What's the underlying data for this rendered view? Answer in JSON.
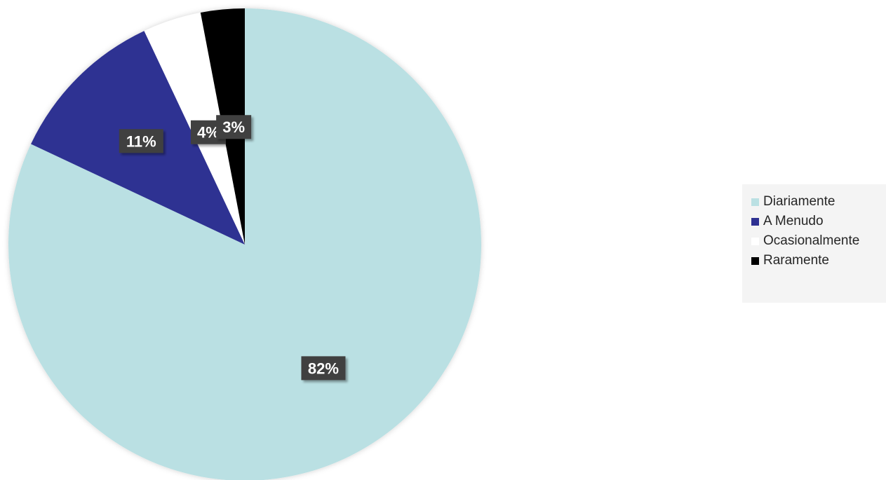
{
  "chart_data": {
    "type": "pie",
    "title": "",
    "slices": [
      {
        "label": "Diariamente",
        "value": 82,
        "display": "82%",
        "color": "#bae0e3"
      },
      {
        "label": "A Menudo",
        "value": 11,
        "display": "11%",
        "color": "#2e3192"
      },
      {
        "label": "Ocasionalmente",
        "value": 4,
        "display": "4%",
        "color": "#ffffff"
      },
      {
        "label": "Raramente",
        "value": 3,
        "display": "3%",
        "color": "#000000"
      }
    ],
    "legend_position": "right"
  },
  "legend": {
    "items": [
      {
        "label": "Diariamente",
        "color": "#bae0e3"
      },
      {
        "label": "A Menudo",
        "color": "#2e3192"
      },
      {
        "label": "Ocasionalmente",
        "color": "#ffffff"
      },
      {
        "label": "Raramente",
        "color": "#000000"
      }
    ]
  }
}
